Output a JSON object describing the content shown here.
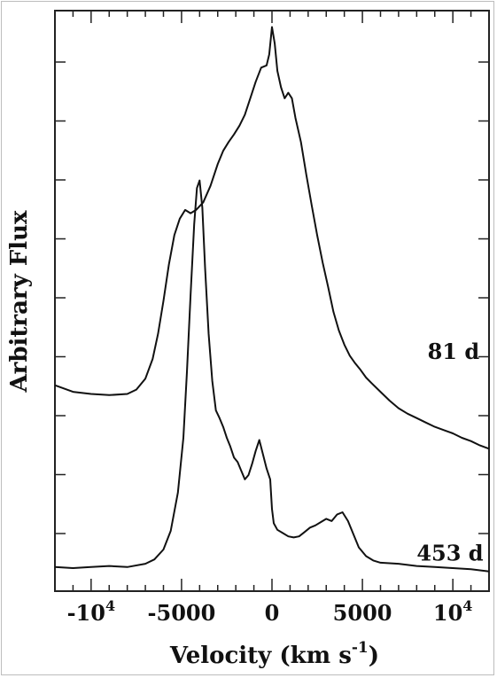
{
  "chart_data": {
    "type": "line",
    "xlabel": "Velocity (km s",
    "xlabel_sup": "-1",
    "xlabel_close": ")",
    "ylabel": "Arbitrary Flux",
    "xlim": [
      -12000,
      12000
    ],
    "x_ticks": [
      {
        "value": -10000,
        "label": "-10",
        "sup": "4"
      },
      {
        "value": -5000,
        "label": "-5000",
        "sup": ""
      },
      {
        "value": 0,
        "label": "0",
        "sup": ""
      },
      {
        "value": 5000,
        "label": "5000",
        "sup": ""
      },
      {
        "value": 10000,
        "label": "10",
        "sup": "4"
      }
    ],
    "y_ticks_shown": false,
    "legend": "none",
    "grid": false,
    "series": [
      {
        "name": "81 d",
        "x": [
          -12000,
          -11000,
          -10000,
          -9000,
          -8000,
          -7500,
          -7000,
          -6600,
          -6300,
          -6000,
          -5700,
          -5400,
          -5100,
          -4800,
          -4500,
          -4200,
          -3800,
          -3400,
          -3000,
          -2700,
          -2400,
          -2100,
          -1800,
          -1500,
          -1200,
          -900,
          -600,
          -300,
          -150,
          0,
          150,
          300,
          500,
          700,
          900,
          1100,
          1300,
          1600,
          1900,
          2200,
          2500,
          2800,
          3100,
          3400,
          3700,
          4000,
          4300,
          4600,
          4900,
          5200,
          5500,
          6000,
          6500,
          7000,
          7500,
          8000,
          8500,
          9000,
          9500,
          10000,
          10500,
          11000,
          11500,
          12000
        ],
        "y": [
          1.68,
          1.62,
          1.6,
          1.59,
          1.6,
          1.64,
          1.74,
          1.92,
          2.15,
          2.45,
          2.78,
          3.05,
          3.2,
          3.28,
          3.25,
          3.28,
          3.35,
          3.5,
          3.7,
          3.82,
          3.9,
          3.97,
          4.05,
          4.15,
          4.3,
          4.45,
          4.58,
          4.6,
          4.7,
          4.95,
          4.8,
          4.55,
          4.4,
          4.3,
          4.35,
          4.3,
          4.12,
          3.9,
          3.6,
          3.32,
          3.05,
          2.8,
          2.58,
          2.35,
          2.18,
          2.05,
          1.95,
          1.88,
          1.82,
          1.75,
          1.7,
          1.62,
          1.54,
          1.47,
          1.42,
          1.38,
          1.34,
          1.3,
          1.27,
          1.24,
          1.2,
          1.17,
          1.13,
          1.1
        ]
      },
      {
        "name": "453 d",
        "x": [
          -12000,
          -11000,
          -10000,
          -9000,
          -8000,
          -7000,
          -6500,
          -6000,
          -5600,
          -5200,
          -4900,
          -4700,
          -4500,
          -4300,
          -4150,
          -4000,
          -3850,
          -3700,
          -3500,
          -3300,
          -3100,
          -2900,
          -2700,
          -2500,
          -2300,
          -2100,
          -1900,
          -1700,
          -1500,
          -1300,
          -1100,
          -900,
          -700,
          -500,
          -300,
          -100,
          0,
          100,
          300,
          600,
          900,
          1200,
          1500,
          1800,
          2100,
          2400,
          2700,
          3000,
          3300,
          3600,
          3900,
          4200,
          4500,
          4800,
          5200,
          5600,
          6000,
          7000,
          8000,
          9000,
          10000,
          11000,
          12000
        ],
        "y": [
          0.02,
          0.01,
          0.02,
          0.03,
          0.02,
          0.05,
          0.09,
          0.18,
          0.35,
          0.7,
          1.2,
          1.8,
          2.5,
          3.15,
          3.48,
          3.55,
          3.3,
          2.75,
          2.15,
          1.72,
          1.45,
          1.38,
          1.3,
          1.2,
          1.12,
          1.02,
          0.98,
          0.9,
          0.82,
          0.86,
          0.96,
          1.08,
          1.18,
          1.05,
          0.92,
          0.82,
          0.55,
          0.42,
          0.36,
          0.33,
          0.3,
          0.29,
          0.3,
          0.34,
          0.38,
          0.4,
          0.43,
          0.46,
          0.44,
          0.5,
          0.52,
          0.44,
          0.32,
          0.2,
          0.12,
          0.08,
          0.06,
          0.05,
          0.03,
          0.02,
          0.01,
          0.0,
          -0.02
        ]
      }
    ],
    "annotations": [
      {
        "text": "81 d",
        "x": 8600,
        "y": 1.92
      },
      {
        "text": "453 d",
        "x": 8000,
        "y": 0.08
      }
    ]
  }
}
